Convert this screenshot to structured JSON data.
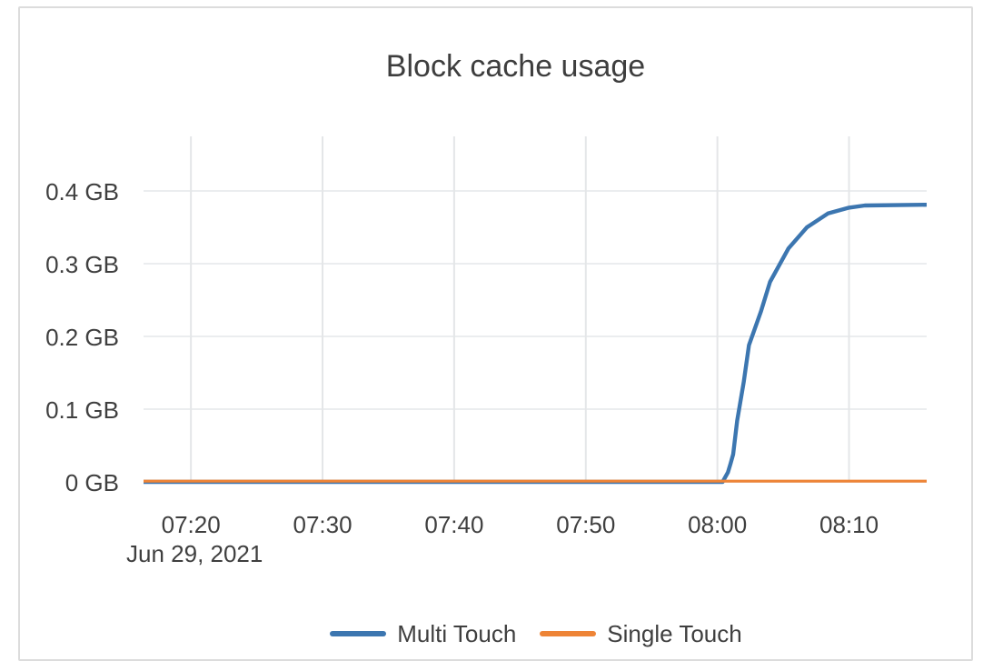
{
  "window": {
    "background": "#ffffff",
    "card_border_color": "#dcdcdc"
  },
  "colors": {
    "text": "#3f3f3f",
    "title_text": "#3e3e3e",
    "grid_vertical": "#e4e6e8",
    "grid_horizontal": "#ebedef"
  },
  "chart_data": {
    "type": "line",
    "title": "Block cache usage",
    "x_axis": {
      "label_date": "Jun 29, 2021",
      "range_minutes": [
        436.4,
        495.9
      ],
      "ticks": [
        {
          "minutes": 440,
          "label": "07:20"
        },
        {
          "minutes": 450,
          "label": "07:30"
        },
        {
          "minutes": 460,
          "label": "07:40"
        },
        {
          "minutes": 470,
          "label": "07:50"
        },
        {
          "minutes": 480,
          "label": "08:00"
        },
        {
          "minutes": 490,
          "label": "08:10"
        }
      ]
    },
    "y_axis": {
      "unit": "GB",
      "range_gb": [
        0,
        0.475
      ],
      "ticks": [
        {
          "value": 0,
          "label": "0 GB"
        },
        {
          "value": 0.1,
          "label": "0.1 GB"
        },
        {
          "value": 0.2,
          "label": "0.2 GB"
        },
        {
          "value": 0.3,
          "label": "0.3 GB"
        },
        {
          "value": 0.4,
          "label": "0.4 GB"
        }
      ]
    },
    "legend": {
      "position": "bottom",
      "items": [
        "Multi Touch",
        "Single Touch"
      ]
    },
    "series": [
      {
        "name": "Multi Touch",
        "color": "#3c76b0",
        "points": [
          [
            436.4,
            0
          ],
          [
            445,
            0
          ],
          [
            455,
            0
          ],
          [
            465,
            0
          ],
          [
            475,
            0
          ],
          [
            480.4,
            0
          ],
          [
            480.8,
            0.013
          ],
          [
            481.0,
            0.025
          ],
          [
            481.2,
            0.038
          ],
          [
            481.5,
            0.084
          ],
          [
            482.0,
            0.137
          ],
          [
            482.4,
            0.188
          ],
          [
            483.3,
            0.234
          ],
          [
            484.0,
            0.275
          ],
          [
            485.4,
            0.321
          ],
          [
            486.8,
            0.35
          ],
          [
            488.4,
            0.369
          ],
          [
            490.0,
            0.377
          ],
          [
            491.2,
            0.38
          ],
          [
            495.9,
            0.381
          ]
        ]
      },
      {
        "name": "Single Touch",
        "color": "#ee8436",
        "points": [
          [
            436.4,
            0
          ],
          [
            495.9,
            0
          ]
        ]
      }
    ]
  }
}
